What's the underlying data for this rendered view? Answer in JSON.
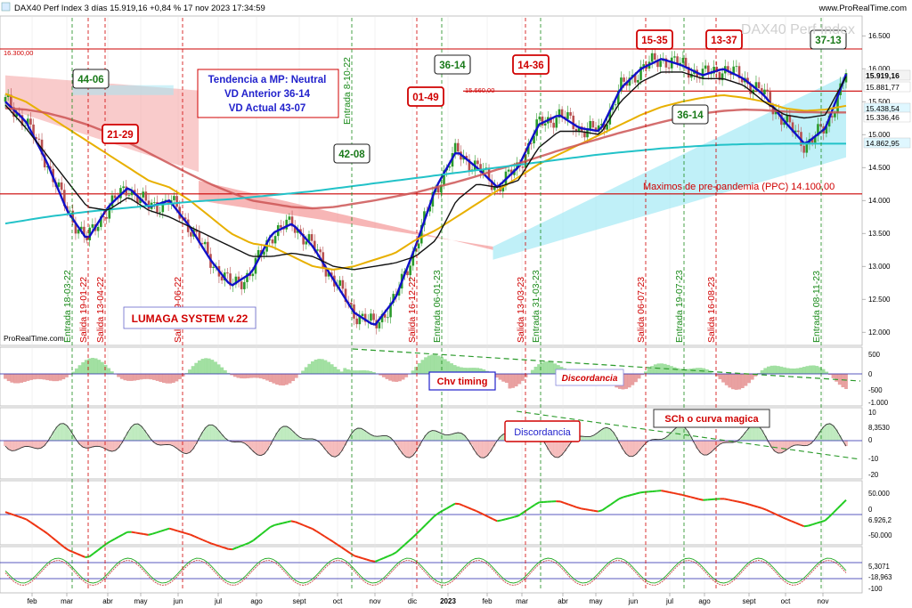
{
  "header": {
    "title": "DAX40 Perf Index 3 días 15.919,16 +0,84 % 17 nov 2023 17:34:59",
    "brand": "www.ProRealTime.com",
    "watermark": "DAX40 Perf Index",
    "footer_brand": "ProRealTime.com"
  },
  "annotations": {
    "trend_box": [
      "Tendencia a MP: Neutral",
      "VD Anterior 36-14",
      "VD Actual 43-07"
    ],
    "system_label": "LUMAGA SYSTEM v.22",
    "pre_pandemic": "Maximos de pre-pandemia (PPC) 14.100,00",
    "level_16300": "16.300,00",
    "level_15660": "15.660,00",
    "chv_timing": "Chv timing",
    "discordancia_1": "Discordancia",
    "discordancia_2": "Discordancia",
    "sch_curve": "SCh o curva magica"
  },
  "counters": [
    {
      "text": "44-06",
      "color": "#1a7a1a"
    },
    {
      "text": "21-29",
      "color": "#d00000"
    },
    {
      "text": "42-08",
      "color": "#1a7a1a"
    },
    {
      "text": "01-49",
      "color": "#d00000"
    },
    {
      "text": "36-14",
      "color": "#1a7a1a"
    },
    {
      "text": "14-36",
      "color": "#d00000"
    },
    {
      "text": "15-35",
      "color": "#d00000"
    },
    {
      "text": "13-37",
      "color": "#d00000"
    },
    {
      "text": "36-14",
      "color": "#1a7a1a"
    },
    {
      "text": "37-13",
      "color": "#1a7a1a"
    }
  ],
  "signals": [
    {
      "text": "Entrada 18-03-22",
      "type": "entry"
    },
    {
      "text": "Salida 19-01-22",
      "type": "exit"
    },
    {
      "text": "Salida 13-04-22",
      "type": "exit"
    },
    {
      "text": "Salida 09-06-22",
      "type": "exit"
    },
    {
      "text": "Entrada 8-10-22",
      "type": "entry"
    },
    {
      "text": "Salida 16-12-22",
      "type": "exit"
    },
    {
      "text": "Entrada 06-01-23",
      "type": "entry"
    },
    {
      "text": "Salida 13-03-23",
      "type": "exit"
    },
    {
      "text": "Entrada 31-03-23",
      "type": "entry"
    },
    {
      "text": "Salida 06-07-23",
      "type": "exit"
    },
    {
      "text": "Entrada 19-07-23",
      "type": "entry"
    },
    {
      "text": "Salida 16-08-23",
      "type": "exit"
    },
    {
      "text": "Entrada 08-11-23",
      "type": "entry"
    }
  ],
  "price_badges": [
    {
      "text": "15.919,16",
      "bg": "#f3f3f3",
      "bold": true
    },
    {
      "text": "15.881,77",
      "bg": "#ffffff",
      "bold": false
    },
    {
      "text": "15.438,54",
      "bg": "#dff7ff",
      "bold": false
    },
    {
      "text": "15.336,46",
      "bg": "#ffffff",
      "bold": false
    },
    {
      "text": "14.862,95",
      "bg": "#dff7ff",
      "bold": false
    }
  ],
  "indicator_ticks": {
    "p1": [
      "500",
      "0",
      "-500",
      "-1.000"
    ],
    "p2": [
      "8,3530",
      "0",
      "-10",
      "-20"
    ],
    "p2_top": "10",
    "p3": [
      "50.000",
      "0",
      "6.926,2",
      "-50.000"
    ],
    "p4": [
      "5,3071",
      "-18,963",
      "-100"
    ]
  },
  "chart_data": {
    "type": "line",
    "title": "DAX40 Perf Index 3 días 15.919,16 +0,84 % 17 nov 2023 17:34:59",
    "x_ticks": [
      "feb",
      "mar",
      "abr",
      "may",
      "jun",
      "jul",
      "ago",
      "sept",
      "oct",
      "nov",
      "dic",
      "2023",
      "feb",
      "mar",
      "abr",
      "may",
      "jun",
      "jul",
      "ago",
      "sept",
      "oct",
      "nov"
    ],
    "y_ticks": [
      "16.500",
      "16.000",
      "15.500",
      "15.000",
      "14.500",
      "14.000",
      "13.500",
      "13.000",
      "12.500",
      "12.000"
    ],
    "ylim": [
      11800,
      16800
    ],
    "levels": [
      16300,
      15660,
      14100
    ],
    "series": [
      {
        "color": "#1010c8",
        "values": [
          15500,
          15200,
          14600,
          13850,
          13400,
          13900,
          14200,
          13900,
          14000,
          13600,
          13100,
          12700,
          12900,
          13500,
          13650,
          13300,
          12800,
          12300,
          12100,
          12500,
          13300,
          14200,
          14750,
          14500,
          14200,
          14500,
          15150,
          15300,
          15100,
          15050,
          15700,
          16000,
          16150,
          16050,
          15900,
          16000,
          15850,
          15600,
          15200,
          14850,
          15100,
          15919
        ]
      },
      {
        "color": "#e8b000",
        "values": [
          15620,
          15500,
          15300,
          15100,
          14900,
          14700,
          14500,
          14300,
          14200,
          14000,
          13750,
          13500,
          13350,
          13300,
          13150,
          13000,
          12950,
          13000,
          13100,
          13200,
          13400,
          13550,
          13750,
          13950,
          14150,
          14350,
          14550,
          14700,
          14850,
          15000,
          15150,
          15300,
          15420,
          15500,
          15560,
          15600,
          15560,
          15500,
          15400,
          15360,
          15380,
          15438
        ]
      },
      {
        "color": "#cc5555",
        "values": [
          15400,
          15380,
          15330,
          15250,
          15150,
          15030,
          14880,
          14720,
          14560,
          14400,
          14250,
          14120,
          14000,
          13950,
          13900,
          13880,
          13900,
          13950,
          14000,
          14060,
          14120,
          14200,
          14280,
          14370,
          14470,
          14560,
          14660,
          14760,
          14850,
          14940,
          15030,
          15110,
          15190,
          15260,
          15320,
          15360,
          15380,
          15370,
          15350,
          15340,
          15336,
          15336
        ]
      },
      {
        "color": "#22c2c8",
        "values": [
          13650,
          13700,
          13750,
          13790,
          13830,
          13860,
          13890,
          13920,
          13950,
          13980,
          14000,
          14020,
          14050,
          14080,
          14110,
          14140,
          14180,
          14220,
          14260,
          14300,
          14340,
          14380,
          14420,
          14460,
          14500,
          14540,
          14580,
          14620,
          14660,
          14700,
          14730,
          14760,
          14790,
          14810,
          14830,
          14845,
          14855,
          14860,
          14862,
          14862,
          14862,
          14862
        ]
      },
      {
        "color": "#111111",
        "values": [
          15450,
          15100,
          14700,
          14300,
          13900,
          13850,
          14050,
          13850,
          13750,
          13600,
          13450,
          13300,
          13150,
          13150,
          13200,
          13150,
          13000,
          12950,
          13000,
          13050,
          13150,
          13400,
          14000,
          14250,
          14200,
          14300,
          14800,
          15050,
          15050,
          15000,
          15500,
          15800,
          15950,
          15950,
          15850,
          15850,
          15750,
          15500,
          15300,
          15250,
          15300,
          15881
        ]
      }
    ]
  }
}
